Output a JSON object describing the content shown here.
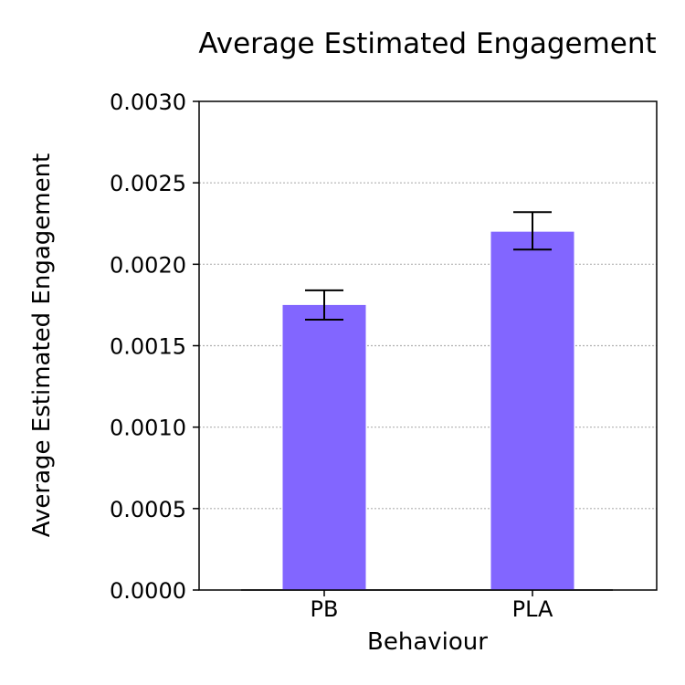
{
  "chart_data": {
    "type": "bar",
    "title": "Average Estimated Engagement",
    "xlabel": "Behaviour",
    "ylabel": "Average Estimated Engagement",
    "categories": [
      "PB",
      "PLA"
    ],
    "values": [
      0.00175,
      0.0022
    ],
    "error_low": [
      0.00166,
      0.00209
    ],
    "error_high": [
      0.00184,
      0.00232
    ],
    "ylim": [
      0,
      0.003
    ],
    "yticks": [
      0.0,
      0.0005,
      0.001,
      0.0015,
      0.002,
      0.0025,
      0.003
    ],
    "ytick_labels": [
      "0.0000",
      "0.0005",
      "0.0010",
      "0.0015",
      "0.0020",
      "0.0025",
      "0.0030"
    ],
    "grid": "horizontal dotted",
    "colors": {
      "bar": "#8266ff"
    }
  }
}
